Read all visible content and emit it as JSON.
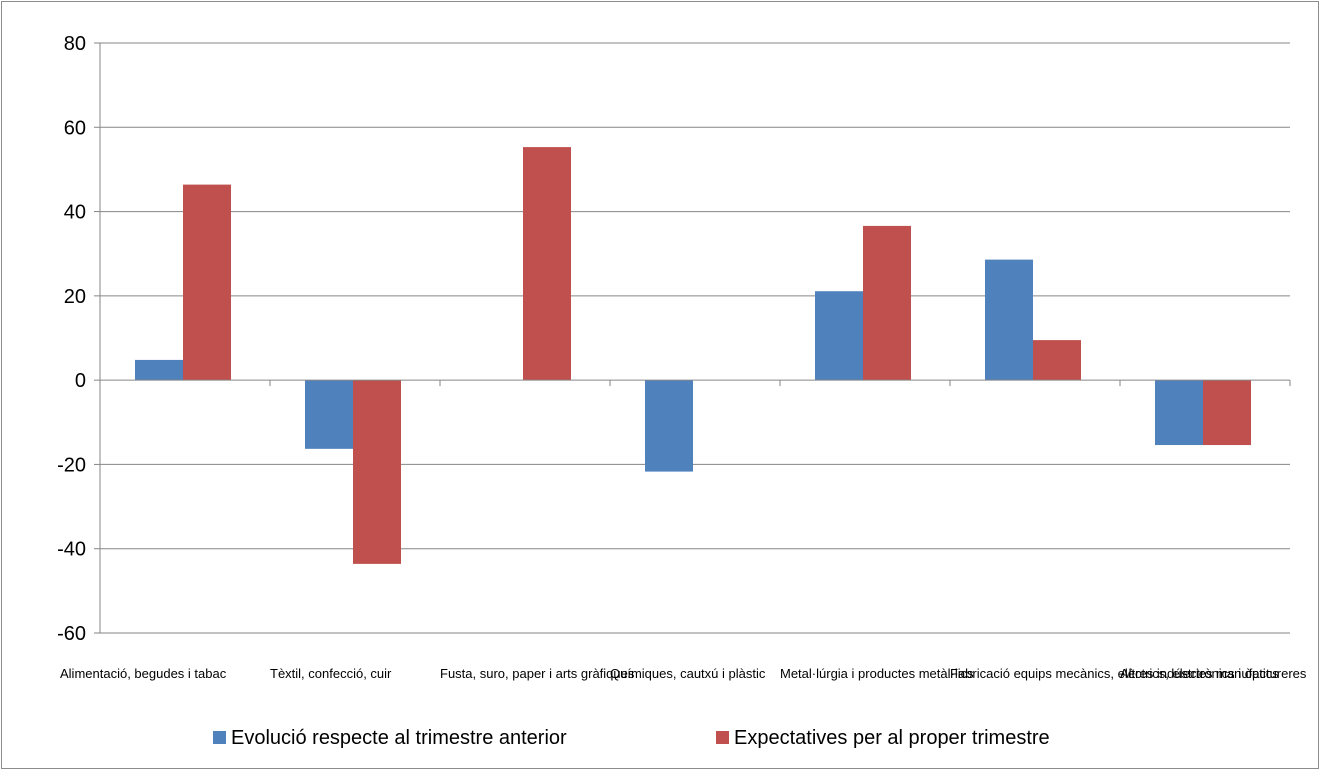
{
  "chart_data": {
    "type": "bar",
    "title": "",
    "xlabel": "",
    "ylabel": "",
    "ylim": [
      -60,
      80
    ],
    "yticks": [
      -60,
      -40,
      -20,
      0,
      20,
      40,
      60,
      80
    ],
    "grid": true,
    "legend_position": "bottom",
    "categories": [
      "Alimentació, begudes i tabac",
      "Tèxtil, confecció, cuir",
      "Fusta, suro, paper i arts gràfiques",
      "Químiques, cautxú i plàstic",
      "Metal·lúrgia i productes metàl·lics",
      "Fabricació equips mecànics, elèctrics, electrònics i òptics",
      "Altres indústries manufactureres"
    ],
    "series": [
      {
        "name": "Evolució respecte al trimestre anterior",
        "color": "#4f81bd",
        "values": [
          4.8,
          -16.3,
          0,
          -21.7,
          21.1,
          28.6,
          -15.4
        ]
      },
      {
        "name": "Expectatives per al proper trimestre",
        "color": "#c0504d",
        "values": [
          46.4,
          -43.6,
          55.3,
          0,
          36.6,
          9.5,
          -15.4
        ]
      }
    ]
  }
}
